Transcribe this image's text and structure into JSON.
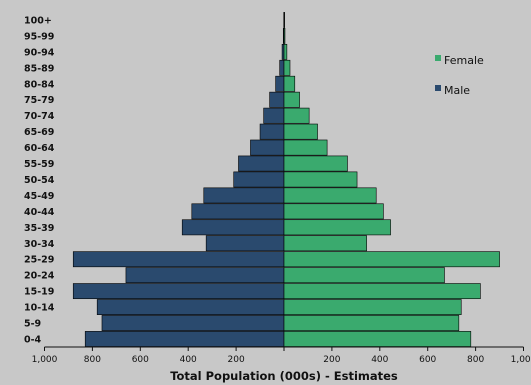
{
  "chart_data": {
    "type": "bar",
    "orientation": "horizontal-pyramid",
    "categories": [
      "0-4",
      "5-9",
      "10-14",
      "15-19",
      "20-24",
      "25-29",
      "30-34",
      "35-39",
      "40-44",
      "45-49",
      "50-54",
      "55-59",
      "60-64",
      "65-69",
      "70-74",
      "75-79",
      "80-84",
      "85-89",
      "90-94",
      "95-99",
      "100+"
    ],
    "series": [
      {
        "name": "Male",
        "color": "#2a4a6e",
        "values": [
          830,
          760,
          780,
          880,
          660,
          880,
          325,
          425,
          385,
          335,
          210,
          190,
          140,
          100,
          85,
          60,
          35,
          18,
          8,
          3,
          1
        ]
      },
      {
        "name": "Female",
        "color": "#3aaa6e",
        "values": [
          780,
          730,
          740,
          820,
          670,
          900,
          345,
          445,
          415,
          385,
          305,
          265,
          180,
          140,
          105,
          65,
          45,
          25,
          12,
          4,
          1
        ]
      }
    ],
    "xlim": [
      -1000,
      1000
    ],
    "xticks": [
      -1000,
      -800,
      -600,
      -400,
      -200,
      0,
      200,
      400,
      600,
      800,
      1000
    ],
    "xtick_labels": [
      "1,000",
      "800",
      "600",
      "400",
      "200",
      "",
      "200",
      "400",
      "600",
      "800",
      "1,000"
    ],
    "xlabel": "Total Population (000s) - Estimates",
    "ylabel": "",
    "title": "",
    "grid": false,
    "legend": {
      "placement": "top-right",
      "entries": [
        "Female",
        "Male"
      ]
    }
  }
}
